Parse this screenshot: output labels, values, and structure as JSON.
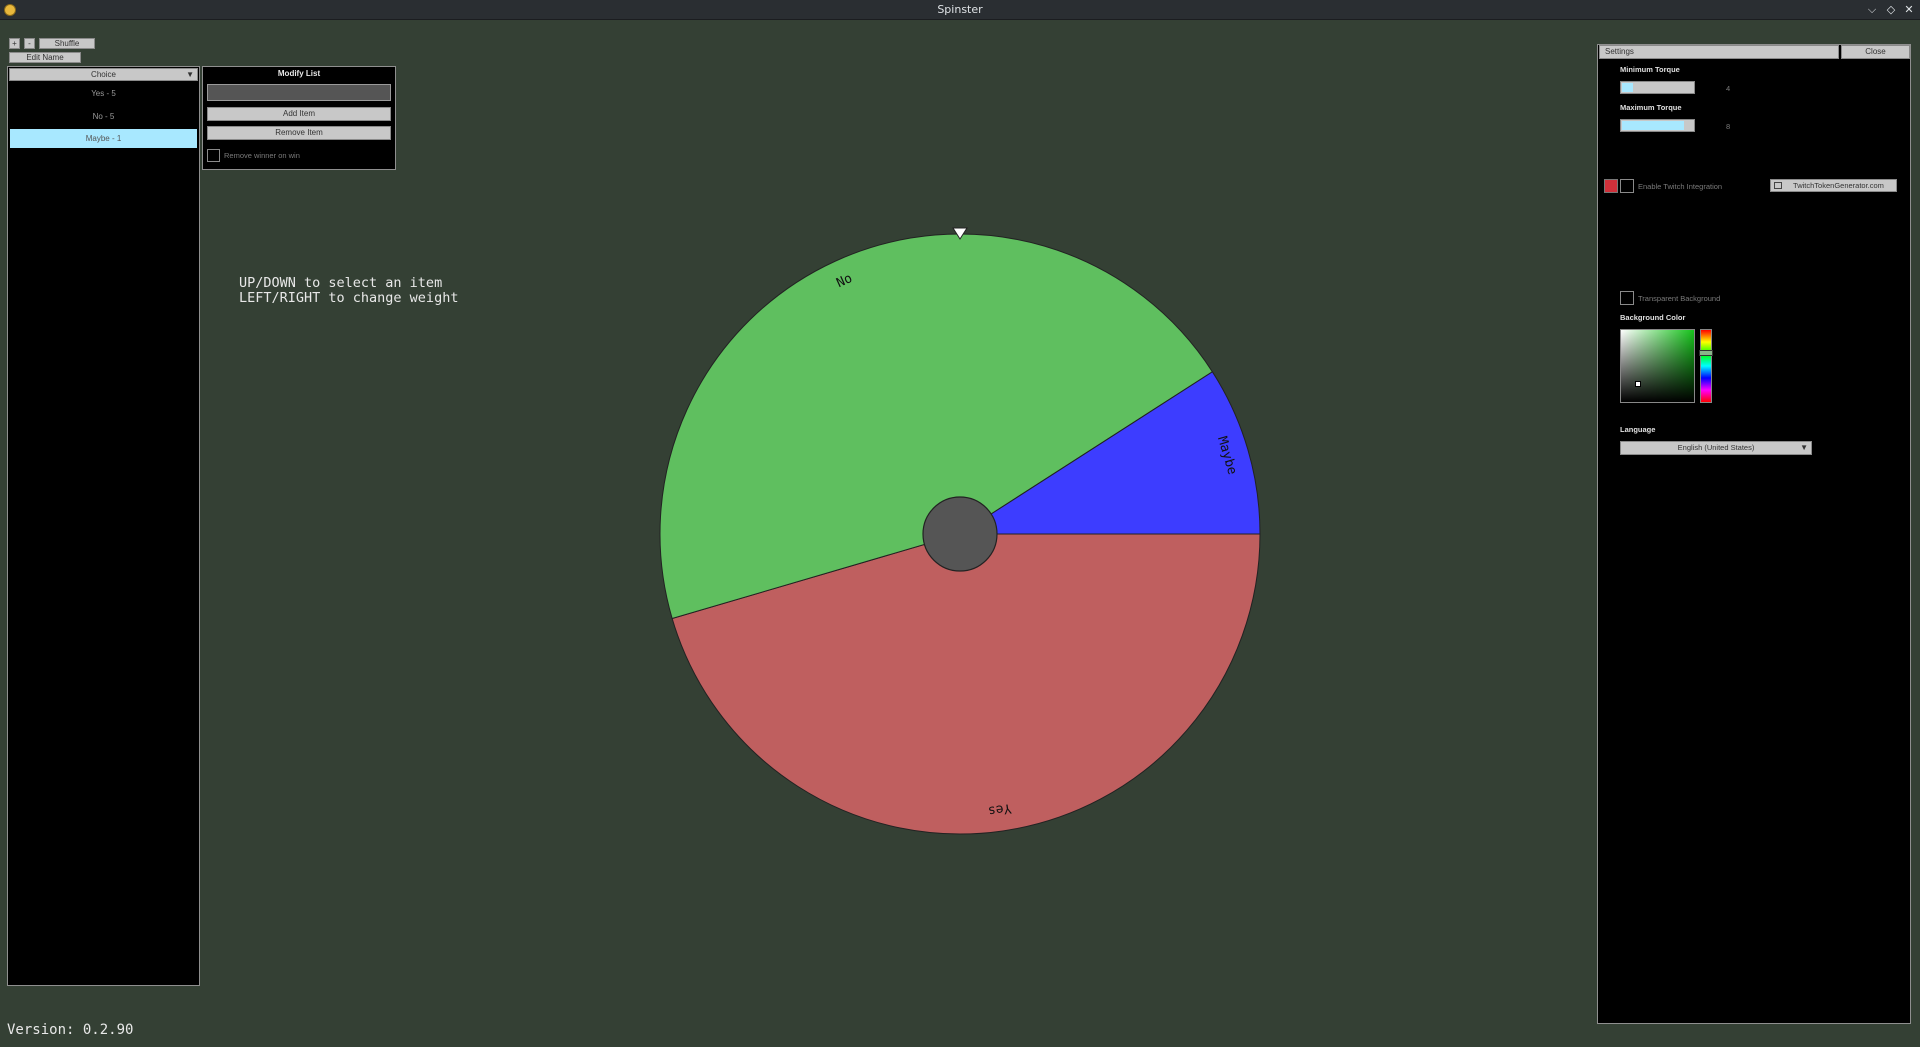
{
  "window": {
    "title": "Spinster",
    "controls": {
      "minimize": "⌵",
      "maximize": "◇",
      "close": "✕"
    }
  },
  "toolbar": {
    "add_label": "+",
    "remove_label": "-",
    "shuffle_label": "Shuffle",
    "edit_name_label": "Edit Name"
  },
  "list_panel": {
    "dropdown_value": "Choice",
    "items": [
      {
        "label": "Yes - 5",
        "selected": false
      },
      {
        "label": "No - 5",
        "selected": false
      },
      {
        "label": "Maybe - 1",
        "selected": true
      }
    ]
  },
  "modify_list": {
    "title": "Modify List",
    "input_value": "",
    "add_label": "Add Item",
    "remove_label": "Remove Item",
    "remove_winner_label": "Remove winner on win"
  },
  "hint": {
    "line1": "UP/DOWN to select an item",
    "line2": "LEFT/RIGHT to change weight"
  },
  "wheel": {
    "segments": [
      {
        "label": "Yes",
        "weight": 5,
        "color": "#bf5f5f"
      },
      {
        "label": "No",
        "weight": 5,
        "color": "#5fbf5f"
      },
      {
        "label": "Maybe",
        "weight": 1,
        "color": "#3d3dff"
      }
    ],
    "hub_color": "#555555",
    "background_color": "#344034"
  },
  "settings": {
    "tab_label": "Settings",
    "close_label": "Close",
    "min_torque_label": "Minimum Torque",
    "min_torque_value": "4",
    "min_torque_fraction": 0.15,
    "max_torque_label": "Maximum Torque",
    "max_torque_value": "8",
    "max_torque_fraction": 0.85,
    "twitch_label": "Enable Twitch Integration",
    "twitch_button_label": "TwitchTokenGenerator.com",
    "twitch_status_color": "#d0303a",
    "transparent_bg_label": "Transparent Background",
    "bg_color_label": "Background Color",
    "language_label": "Language",
    "language_value": "English (United States)"
  },
  "version": "Version: 0.2.90"
}
